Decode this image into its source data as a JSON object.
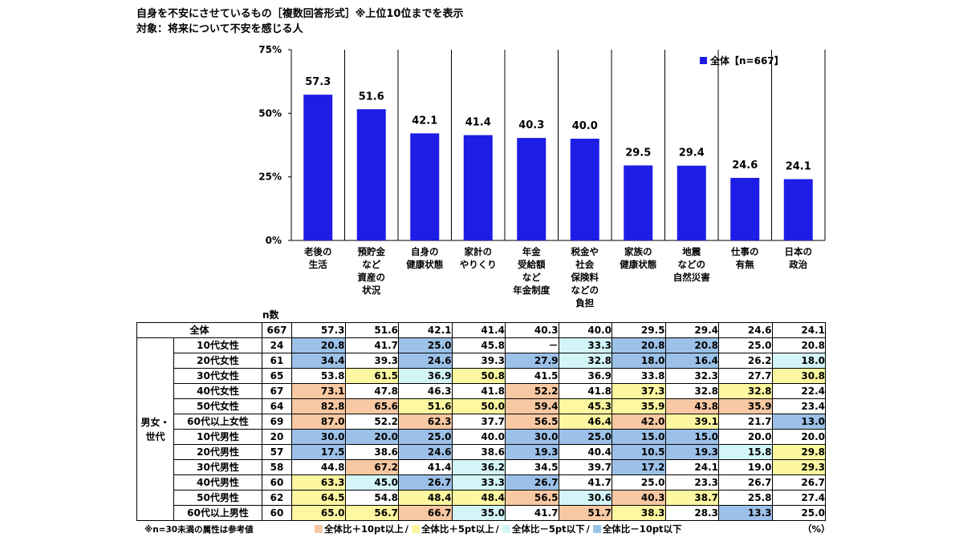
{
  "title_line1": "自身を不安にさせているもの［複数回答形式］※上位10位までを表示",
  "title_line2": "対象：将来について不安を感じる人",
  "chart_data": {
    "type": "bar",
    "categories": [
      "老後の\n生活",
      "預貯金\nなど\n資産の\n状況",
      "自身の\n健康状態",
      "家計の\nやりくり",
      "年金\n受給額\nなど\n年金制度",
      "税金や\n社会\n保険料\nなどの\n負担",
      "家族の\n健康状態",
      "地震\nなどの\n自然災害",
      "仕事の\n有無",
      "日本の\n政治"
    ],
    "series": [
      {
        "name": "全体【n=667】",
        "values": [
          57.3,
          51.6,
          42.1,
          41.4,
          40.3,
          40.0,
          29.5,
          29.4,
          24.6,
          24.1
        ]
      }
    ],
    "value_labels": [
      "57.3",
      "51.6",
      "42.1",
      "41.4",
      "40.3",
      "40.0",
      "29.5",
      "29.4",
      "24.6",
      "24.1"
    ],
    "ylim": [
      0,
      75
    ],
    "yticks": [
      "0%",
      "25%",
      "50%",
      "75%"
    ],
    "legend_position": "top-right",
    "bar_color": "#1d1de6"
  },
  "table": {
    "n_header": "n数",
    "group_label": "男女・\n世代",
    "total_row": {
      "label": "全体",
      "n": "667",
      "values": [
        "57.3",
        "51.6",
        "42.1",
        "41.4",
        "40.3",
        "40.0",
        "29.5",
        "29.4",
        "24.6",
        "24.1"
      ]
    },
    "rows": [
      {
        "label": "10代女性",
        "n": "24",
        "values": [
          "20.8",
          "41.7",
          "25.0",
          "45.8",
          "－",
          "33.3",
          "20.8",
          "20.8",
          "25.0",
          "20.8"
        ],
        "colors": [
          "b",
          "",
          "b",
          "",
          "",
          "t",
          "b",
          "b",
          "",
          ""
        ]
      },
      {
        "label": "20代女性",
        "n": "61",
        "values": [
          "34.4",
          "39.3",
          "24.6",
          "39.3",
          "27.9",
          "32.8",
          "18.0",
          "16.4",
          "26.2",
          "18.0"
        ],
        "colors": [
          "b",
          "",
          "b",
          "",
          "b",
          "t",
          "b",
          "b",
          "",
          "t"
        ]
      },
      {
        "label": "30代女性",
        "n": "65",
        "values": [
          "53.8",
          "61.5",
          "36.9",
          "50.8",
          "41.5",
          "36.9",
          "33.8",
          "32.3",
          "27.7",
          "30.8"
        ],
        "colors": [
          "",
          "y",
          "t",
          "y",
          "",
          "",
          "",
          "",
          "",
          "y"
        ]
      },
      {
        "label": "40代女性",
        "n": "67",
        "values": [
          "73.1",
          "47.8",
          "46.3",
          "41.8",
          "52.2",
          "41.8",
          "37.3",
          "32.8",
          "32.8",
          "22.4"
        ],
        "colors": [
          "o",
          "",
          "",
          "",
          "o",
          "",
          "y",
          "",
          "y",
          ""
        ]
      },
      {
        "label": "50代女性",
        "n": "64",
        "values": [
          "82.8",
          "65.6",
          "51.6",
          "50.0",
          "59.4",
          "45.3",
          "35.9",
          "43.8",
          "35.9",
          "23.4"
        ],
        "colors": [
          "o",
          "o",
          "y",
          "y",
          "o",
          "y",
          "y",
          "o",
          "o",
          ""
        ]
      },
      {
        "label": "60代以上女性",
        "n": "69",
        "values": [
          "87.0",
          "52.2",
          "62.3",
          "37.7",
          "56.5",
          "46.4",
          "42.0",
          "39.1",
          "21.7",
          "13.0"
        ],
        "colors": [
          "o",
          "",
          "o",
          "",
          "o",
          "y",
          "o",
          "y",
          "",
          "b"
        ]
      },
      {
        "label": "10代男性",
        "n": "20",
        "values": [
          "30.0",
          "20.0",
          "25.0",
          "40.0",
          "30.0",
          "25.0",
          "15.0",
          "15.0",
          "20.0",
          "20.0"
        ],
        "colors": [
          "b",
          "b",
          "b",
          "",
          "b",
          "b",
          "b",
          "b",
          "",
          ""
        ]
      },
      {
        "label": "20代男性",
        "n": "57",
        "values": [
          "17.5",
          "38.6",
          "24.6",
          "38.6",
          "19.3",
          "40.4",
          "10.5",
          "19.3",
          "15.8",
          "29.8"
        ],
        "colors": [
          "b",
          "",
          "b",
          "",
          "b",
          "",
          "b",
          "b",
          "t",
          "y"
        ]
      },
      {
        "label": "30代男性",
        "n": "58",
        "values": [
          "44.8",
          "67.2",
          "41.4",
          "36.2",
          "34.5",
          "39.7",
          "17.2",
          "24.1",
          "19.0",
          "29.3"
        ],
        "colors": [
          "",
          "o",
          "",
          "t",
          "",
          "",
          "b",
          "",
          "",
          "y"
        ]
      },
      {
        "label": "40代男性",
        "n": "60",
        "values": [
          "63.3",
          "45.0",
          "26.7",
          "33.3",
          "26.7",
          "41.7",
          "25.0",
          "23.3",
          "26.7",
          "26.7"
        ],
        "colors": [
          "y",
          "t",
          "b",
          "t",
          "b",
          "",
          "",
          "",
          "",
          ""
        ]
      },
      {
        "label": "50代男性",
        "n": "62",
        "values": [
          "64.5",
          "54.8",
          "48.4",
          "48.4",
          "56.5",
          "30.6",
          "40.3",
          "38.7",
          "25.8",
          "27.4"
        ],
        "colors": [
          "y",
          "",
          "y",
          "y",
          "o",
          "t",
          "o",
          "y",
          "",
          ""
        ]
      },
      {
        "label": "60代以上男性",
        "n": "60",
        "values": [
          "65.0",
          "56.7",
          "66.7",
          "35.0",
          "41.7",
          "51.7",
          "38.3",
          "28.3",
          "13.3",
          "25.0"
        ],
        "colors": [
          "y",
          "y",
          "o",
          "t",
          "",
          "o",
          "y",
          "",
          "b",
          ""
        ]
      }
    ]
  },
  "footnote": "※n=30未満の属性は参考値",
  "legend_bottom": [
    {
      "label": "全体比＋10pt以上",
      "color": "#f8c8a2"
    },
    {
      "label": "全体比＋5pt以上",
      "color": "#fcf7a0"
    },
    {
      "label": "全体比－5pt以下",
      "color": "#d4f5f8"
    },
    {
      "label": "全体比－10pt以下",
      "color": "#9cc1e8"
    }
  ],
  "legend_separator": "/",
  "unit_label": "（%）"
}
